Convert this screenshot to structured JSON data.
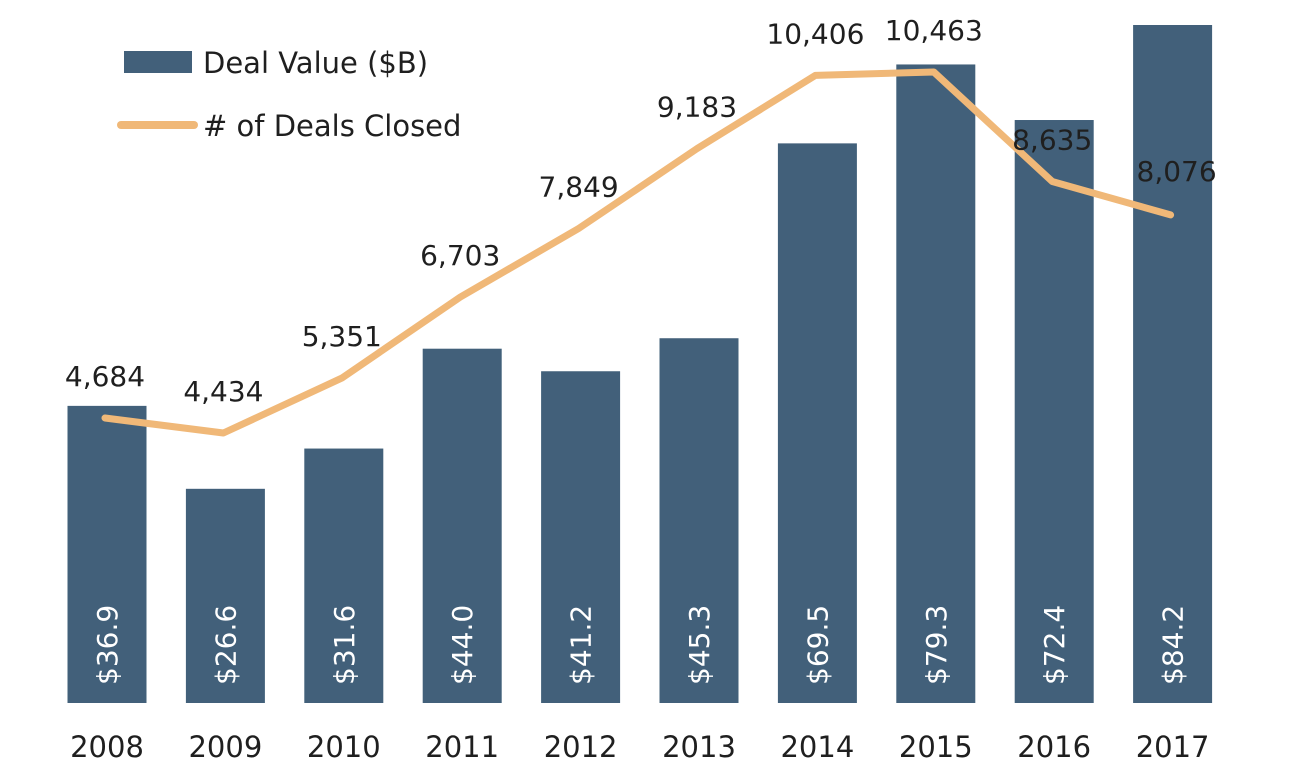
{
  "chart_data": {
    "type": "bar",
    "categories": [
      "2008",
      "2009",
      "2010",
      "2011",
      "2012",
      "2013",
      "2014",
      "2015",
      "2016",
      "2017"
    ],
    "series": [
      {
        "name": "Deal Value ($B)",
        "type": "bar",
        "values": [
          36.9,
          26.6,
          31.6,
          44.0,
          41.2,
          45.3,
          69.5,
          79.3,
          72.4,
          84.2
        ],
        "labels": [
          "$36.9",
          "$26.6",
          "$31.6",
          "$44.0",
          "$41.2",
          "$45.3",
          "$69.5",
          "$79.3",
          "$72.4",
          "$84.2"
        ],
        "color": "#42607a"
      },
      {
        "name": "# of Deals Closed",
        "type": "line",
        "values": [
          4684,
          4434,
          5351,
          6703,
          7849,
          9183,
          10406,
          10463,
          8635,
          8076
        ],
        "labels": [
          "4,684",
          "4,434",
          "5,351",
          "6,703",
          "7,849",
          "9,183",
          "10,406",
          "10,463",
          "8,635",
          "8,076"
        ],
        "color": "#f0b878"
      }
    ],
    "legend_position": "top-left",
    "grid": false
  }
}
